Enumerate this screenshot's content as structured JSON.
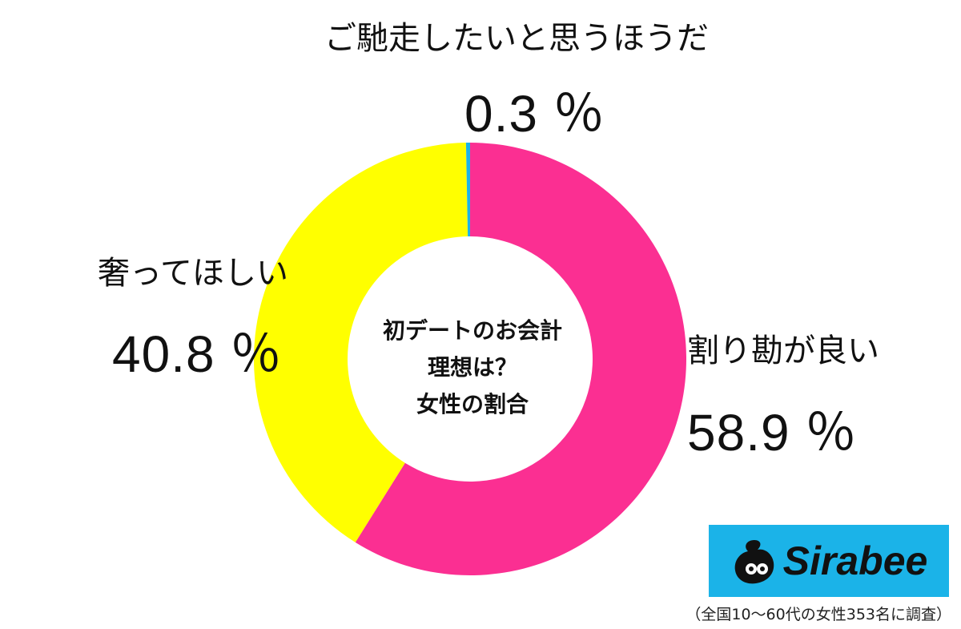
{
  "chart_data": {
    "type": "pie",
    "donut": true,
    "center_title": [
      "初デートのお会計",
      "理想は？",
      "女性の割合"
    ],
    "slices": [
      {
        "label": "割り勘が良い",
        "value": 58.9,
        "value_label": "58.9 ％",
        "color": "#fb2f92"
      },
      {
        "label": "奢ってほしい",
        "value": 40.8,
        "value_label": "40.8 ％",
        "color": "#ffff00"
      },
      {
        "label": "ご馳走したいと思うほうだ",
        "value": 0.3,
        "value_label": "0.3 ％",
        "color": "#1bb3e8"
      }
    ],
    "start": "top",
    "direction": "clockwise",
    "legend": "none"
  },
  "logo": {
    "text": "Sirabee",
    "background_color": "#1bb3e8"
  },
  "footnote": "（全国10～60代の女性353名に調査）"
}
